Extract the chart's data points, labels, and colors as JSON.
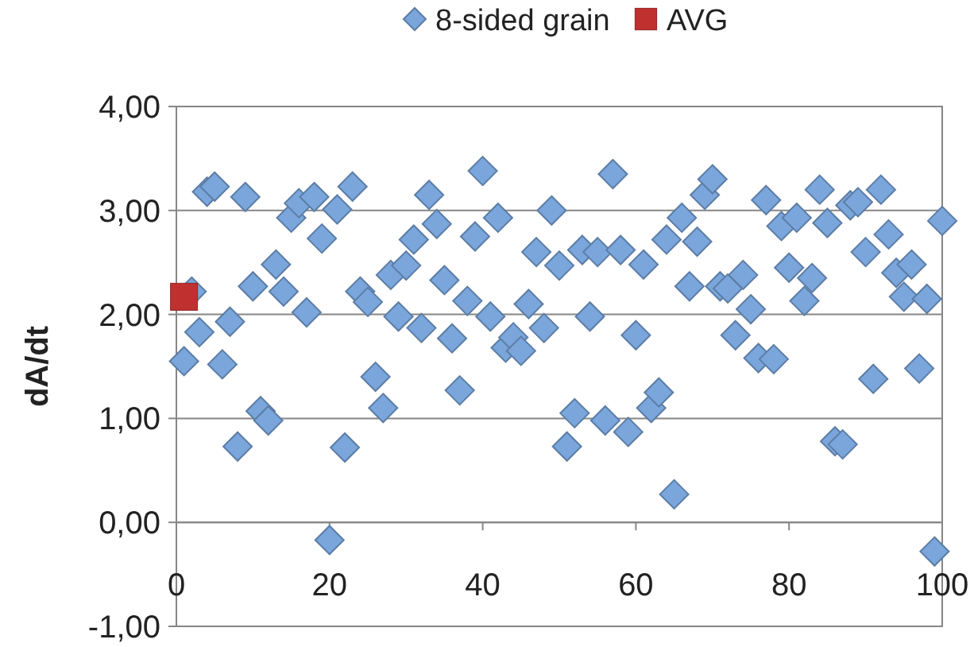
{
  "chart_data": {
    "type": "scatter",
    "ylabel": "dA/dt",
    "xlim": [
      0,
      100
    ],
    "xticks": [
      0,
      20,
      40,
      60,
      80,
      100
    ],
    "ylim": [
      -1,
      4
    ],
    "yticks": [
      {
        "value": -1,
        "label": "-1,00"
      },
      {
        "value": 0,
        "label": "0,00"
      },
      {
        "value": 1,
        "label": "1,00"
      },
      {
        "value": 2,
        "label": "2,00"
      },
      {
        "value": 3,
        "label": "3,00"
      },
      {
        "value": 4,
        "label": "4,00"
      }
    ],
    "grid": "y",
    "legend": "top",
    "series": [
      {
        "name": "8-sided grain",
        "color": "#7aa6dc",
        "marker": "diamond",
        "x": [
          1,
          2,
          3,
          4,
          5,
          6,
          7,
          8,
          9,
          10,
          11,
          12,
          13,
          14,
          15,
          16,
          17,
          18,
          19,
          20,
          21,
          22,
          23,
          24,
          25,
          26,
          27,
          28,
          29,
          30,
          31,
          32,
          33,
          34,
          35,
          36,
          37,
          38,
          39,
          40,
          41,
          42,
          43,
          44,
          45,
          46,
          47,
          48,
          49,
          50,
          51,
          52,
          53,
          54,
          55,
          56,
          57,
          58,
          59,
          60,
          61,
          62,
          63,
          64,
          65,
          66,
          67,
          68,
          69,
          70,
          71,
          72,
          73,
          74,
          75,
          76,
          77,
          78,
          79,
          80,
          81,
          82,
          83,
          84,
          85,
          86,
          87,
          88,
          89,
          90,
          91,
          92,
          93,
          94,
          95,
          96,
          97,
          98,
          99,
          100
        ],
        "values": [
          1.55,
          2.22,
          1.83,
          3.18,
          3.23,
          1.52,
          1.93,
          0.73,
          3.13,
          2.27,
          1.07,
          0.98,
          2.48,
          2.22,
          2.93,
          3.07,
          2.02,
          3.13,
          2.73,
          -0.17,
          3.01,
          0.72,
          3.23,
          2.22,
          2.12,
          1.4,
          1.1,
          2.38,
          1.98,
          2.47,
          2.72,
          1.87,
          3.15,
          2.87,
          2.33,
          1.77,
          1.27,
          2.13,
          2.75,
          3.38,
          1.98,
          2.93,
          1.68,
          1.78,
          1.65,
          2.1,
          2.6,
          1.87,
          3.0,
          2.47,
          0.73,
          1.05,
          2.62,
          1.98,
          2.6,
          0.98,
          3.35,
          2.62,
          0.87,
          1.8,
          2.48,
          1.1,
          1.25,
          2.72,
          0.27,
          2.93,
          2.27,
          2.7,
          3.15,
          3.3,
          2.27,
          2.25,
          1.8,
          2.38,
          2.05,
          1.58,
          3.1,
          1.57,
          2.85,
          2.45,
          2.93,
          2.13,
          2.35,
          3.2,
          2.88,
          0.78,
          0.75,
          3.05,
          3.08,
          2.6,
          1.38,
          3.2,
          2.77,
          2.4,
          2.17,
          2.48,
          1.48,
          2.15,
          -0.28,
          2.9
        ]
      },
      {
        "name": "AVG",
        "color": "#c0302e",
        "marker": "square",
        "x": [
          1
        ],
        "values": [
          2.17
        ]
      }
    ]
  }
}
